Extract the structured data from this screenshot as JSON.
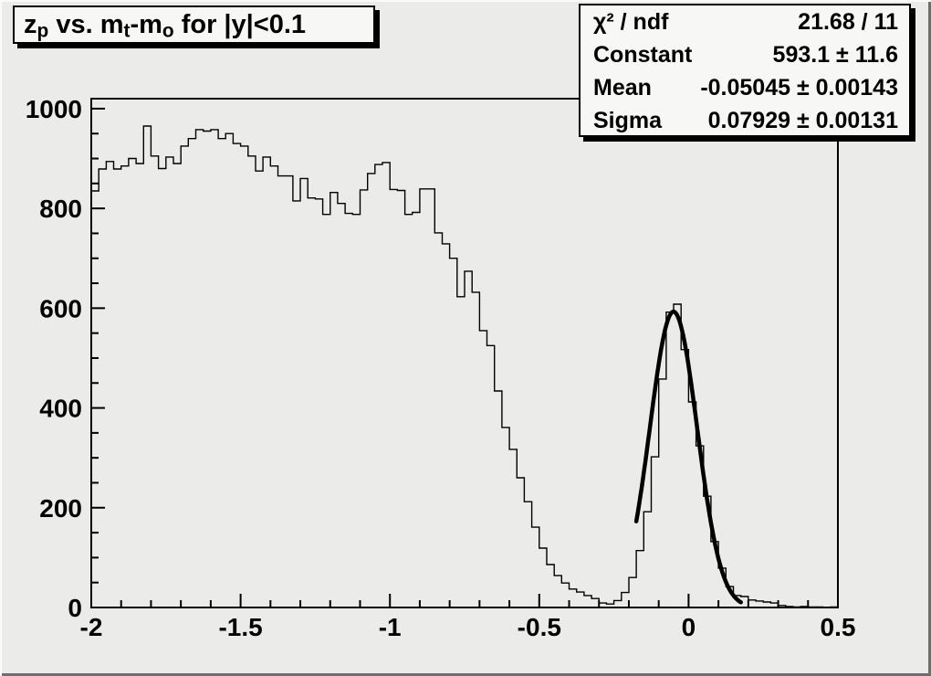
{
  "canvas": {
    "background": "#ebebe9",
    "box_fill": "#f7f7f5",
    "line_color": "#000000",
    "fit_curve_color": "#000000"
  },
  "title_box": {
    "segments": [
      {
        "t": "z"
      },
      {
        "t": "p",
        "sub": true
      },
      {
        "t": " vs. m"
      },
      {
        "t": "t",
        "sub": true
      },
      {
        "t": "-m"
      },
      {
        "t": "o",
        "sub": true
      },
      {
        "t": " for |y|<0.1"
      }
    ],
    "plain": "zp vs. mt-mo for |y|<0.1"
  },
  "stats_box": {
    "rows": [
      {
        "label": "χ² / ndf",
        "value": "21.68 / 11"
      },
      {
        "label": "Constant",
        "value": "593.1 ± 11.6"
      },
      {
        "label": "Mean",
        "value": "-0.05045 ± 0.00143"
      },
      {
        "label": "Sigma",
        "value": "0.07929 ± 0.00131"
      }
    ]
  },
  "chart_data": {
    "type": "bar",
    "title": "zp vs. mt-mo for |y|<0.1",
    "xlabel": "",
    "ylabel": "",
    "xlim": [
      -2.0,
      0.5
    ],
    "ylim": [
      0,
      1020
    ],
    "grid": false,
    "legend": null,
    "x_start": -2.0,
    "bin_width": 0.025,
    "values": [
      835,
      879,
      894,
      879,
      885,
      900,
      890,
      965,
      905,
      880,
      903,
      890,
      925,
      940,
      958,
      955,
      958,
      940,
      950,
      930,
      925,
      905,
      875,
      903,
      885,
      865,
      865,
      815,
      860,
      821,
      819,
      788,
      832,
      810,
      790,
      788,
      837,
      870,
      888,
      892,
      838,
      836,
      788,
      792,
      839,
      839,
      751,
      729,
      700,
      623,
      674,
      632,
      555,
      525,
      434,
      361,
      317,
      260,
      212,
      161,
      119,
      86,
      64,
      49,
      37,
      31,
      24,
      18,
      9,
      7,
      14,
      30,
      60,
      114,
      192,
      302,
      458,
      592,
      608,
      517,
      412,
      324,
      223,
      132,
      79,
      42,
      24,
      22,
      15,
      13,
      11,
      9,
      4,
      2,
      1,
      2,
      1,
      1,
      0,
      1
    ],
    "x_major_ticks": [
      -2,
      -1.5,
      -1,
      -0.5,
      0,
      0.5
    ],
    "x_tick_labels": [
      "-2",
      "-1.5",
      "-1",
      "-0.5",
      "0",
      "0.5"
    ],
    "x_minor_step": 0.1,
    "y_major_ticks": [
      0,
      200,
      400,
      600,
      800,
      1000
    ],
    "y_tick_labels": [
      "0",
      "200",
      "400",
      "600",
      "800",
      "1000"
    ],
    "y_minor_step": 50,
    "fit": {
      "type": "gaussian",
      "constant": 593.1,
      "mean": -0.05045,
      "sigma": 0.07929,
      "draw_range": [
        -0.175,
        0.175
      ]
    }
  }
}
